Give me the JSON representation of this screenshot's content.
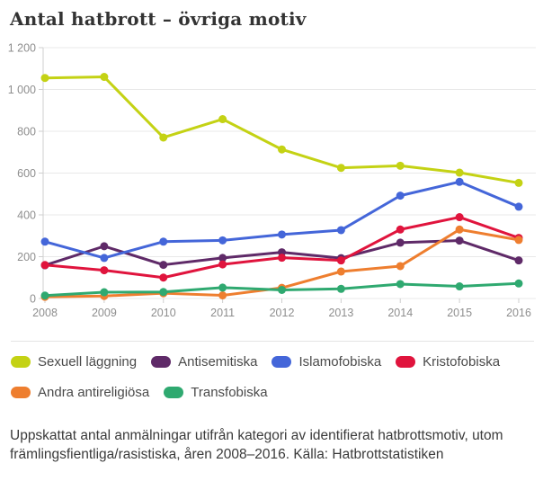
{
  "title": "Antal hatbrott – övriga motiv",
  "caption": "Uppskattat antal anmälningar utifrån kategori av identifierat hatbrottsmotiv, utom främlingsfientliga/rasistiska, åren 2008–2016. Källa: Hatbrottstatistiken",
  "colors": {
    "grid": "#e8e8e8",
    "axis": "#cfcfcf",
    "axis_label": "#8e8e8e",
    "background": "#ffffff"
  },
  "chart_data": {
    "type": "line",
    "title": "Antal hatbrott – övriga motiv",
    "x": [
      "2008",
      "2009",
      "2010",
      "2011",
      "2012",
      "2013",
      "2014",
      "2015",
      "2016"
    ],
    "series": [
      {
        "name": "Sexuell läggning",
        "color": "#c4d214",
        "values": [
          1055,
          1060,
          770,
          858,
          713,
          625,
          635,
          602,
          553
        ]
      },
      {
        "name": "Antisemitiska",
        "color": "#5f2a68",
        "values": [
          159,
          250,
          161,
          194,
          221,
          193,
          267,
          277,
          182
        ]
      },
      {
        "name": "Islamofobiska",
        "color": "#4466d9",
        "values": [
          272,
          194,
          272,
          278,
          306,
          327,
          492,
          558,
          439
        ]
      },
      {
        "name": "Kristofobiska",
        "color": "#e0143d",
        "values": [
          160,
          135,
          100,
          163,
          195,
          182,
          330,
          389,
          290
        ]
      },
      {
        "name": "Andra antireligiösa",
        "color": "#ee7e2f",
        "values": [
          8,
          12,
          25,
          15,
          51,
          129,
          155,
          330,
          280
        ]
      },
      {
        "name": "Transfobiska",
        "color": "#2fa970",
        "values": [
          14,
          30,
          31,
          52,
          41,
          46,
          69,
          58,
          72
        ]
      }
    ],
    "xlabel": "",
    "ylabel": "",
    "ylim": [
      0,
      1200
    ],
    "ytick_step": 200,
    "grid": "horizontal",
    "legend_position": "bottom"
  }
}
